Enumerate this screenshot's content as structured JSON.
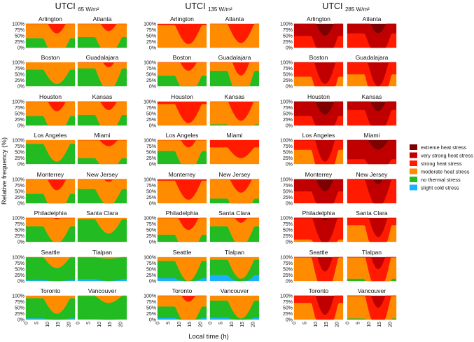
{
  "chart_data": {
    "type": "area",
    "subtype": "stacked-100-percent-small-multiples",
    "ylabel": "Relative frequency (%)",
    "xlabel": "Local time (h)",
    "x_ticks": [
      0,
      5,
      10,
      15,
      20
    ],
    "y_ticks": [
      "100%",
      "75%",
      "50%",
      "25%",
      "0%"
    ],
    "ylim": [
      0,
      100
    ],
    "xlim": [
      0,
      23
    ],
    "legend_position": "right",
    "categories": [
      {
        "key": "extreme",
        "name": "extreme heat stress",
        "color": "#7f0000"
      },
      {
        "key": "very_strong",
        "name": "very strong heat stress",
        "color": "#c00000"
      },
      {
        "key": "strong",
        "name": "strong heat stress",
        "color": "#ff1a00"
      },
      {
        "key": "moderate",
        "name": "moderate heat stress",
        "color": "#ff8c00"
      },
      {
        "key": "none",
        "name": "no thermal stress",
        "color": "#22bb22"
      },
      {
        "key": "cold",
        "name": "slight cold stress",
        "color": "#1ab2ff"
      }
    ],
    "panels": [
      {
        "title": "UTCI",
        "subtitle": "65 W/m²",
        "cities": [
          {
            "name": "Arlington",
            "a": 0.6,
            "b": 1.4,
            "c": 0.9
          },
          {
            "name": "Atlanta",
            "a": 0.55,
            "b": 1.3,
            "c": 0.85
          },
          {
            "name": "Boston",
            "a": 0.3,
            "b": 0.9,
            "c": 0.5
          },
          {
            "name": "Guadalajara",
            "a": 0.25,
            "b": 1.2,
            "c": 0.35
          },
          {
            "name": "Houston",
            "a": 0.6,
            "b": 1.4,
            "c": 0.9
          },
          {
            "name": "Kansas",
            "a": 0.55,
            "b": 1.35,
            "c": 0.85
          },
          {
            "name": "Los Angeles",
            "a": 0.15,
            "b": 0.9,
            "c": 0.4
          },
          {
            "name": "Miami",
            "a": 0.75,
            "b": 1.25,
            "c": 0.9
          },
          {
            "name": "Monterrey",
            "a": 0.6,
            "b": 1.45,
            "c": 0.9
          },
          {
            "name": "New Jersey",
            "a": 0.4,
            "b": 1.1,
            "c": 0.6
          },
          {
            "name": "Philadelphia",
            "a": 0.35,
            "b": 1.05,
            "c": 0.55
          },
          {
            "name": "Santa Clara",
            "a": 0.05,
            "b": 0.65,
            "c": 0.25
          },
          {
            "name": "Seattle",
            "a": 0.0,
            "b": 0.45,
            "c": 0.15,
            "cold": 0.04
          },
          {
            "name": "Tlalpan",
            "a": 0.0,
            "b": 0.05,
            "c": 0.0,
            "cold": 0.08
          },
          {
            "name": "Toronto",
            "a": 0.1,
            "b": 0.75,
            "c": 0.35,
            "cold": 0.06
          },
          {
            "name": "Vancouver",
            "a": 0.0,
            "b": 0.3,
            "c": 0.1,
            "cold": 0.03
          }
        ]
      },
      {
        "title": "UTCI",
        "subtitle": "135 W/m²",
        "cities": [
          {
            "name": "Arlington",
            "a": 1.05,
            "b": 1.85,
            "c": 1.3
          },
          {
            "name": "Atlanta",
            "a": 1.0,
            "b": 1.8,
            "c": 1.25
          },
          {
            "name": "Boston",
            "a": 0.55,
            "b": 1.35,
            "c": 0.8
          },
          {
            "name": "Guadalajara",
            "a": 0.35,
            "b": 1.55,
            "c": 0.5
          },
          {
            "name": "Houston",
            "a": 1.1,
            "b": 1.9,
            "c": 1.35
          },
          {
            "name": "Kansas",
            "a": 0.95,
            "b": 1.8,
            "c": 1.25
          },
          {
            "name": "Los Angeles",
            "a": 0.45,
            "b": 1.3,
            "c": 0.7
          },
          {
            "name": "Miami",
            "a": 1.3,
            "b": 1.75,
            "c": 1.45
          },
          {
            "name": "Monterrey",
            "a": 1.05,
            "b": 1.85,
            "c": 1.3
          },
          {
            "name": "New Jersey",
            "a": 0.8,
            "b": 1.55,
            "c": 1.0
          },
          {
            "name": "Philadelphia",
            "a": 0.7,
            "b": 1.5,
            "c": 0.95
          },
          {
            "name": "Santa Clara",
            "a": 0.35,
            "b": 1.2,
            "c": 0.6
          },
          {
            "name": "Seattle",
            "a": 0.15,
            "b": 1.0,
            "c": 0.4,
            "cold": 0.14
          },
          {
            "name": "Tlalpan",
            "a": 0.1,
            "b": 0.9,
            "c": 0.25,
            "cold": 0.28
          },
          {
            "name": "Toronto",
            "a": 0.45,
            "b": 1.25,
            "c": 0.7,
            "cold": 0.12
          },
          {
            "name": "Vancouver",
            "a": 0.2,
            "b": 0.95,
            "c": 0.45,
            "cold": 0.1
          }
        ]
      },
      {
        "title": "UTCI",
        "subtitle": "285 W/m²",
        "cities": [
          {
            "name": "Arlington",
            "a": 2.5,
            "b": 3.5,
            "c": 2.7
          },
          {
            "name": "Atlanta",
            "a": 2.4,
            "b": 3.4,
            "c": 2.6
          },
          {
            "name": "Boston",
            "a": 1.6,
            "b": 2.9,
            "c": 1.9
          },
          {
            "name": "Guadalajara",
            "a": 1.5,
            "b": 3.0,
            "c": 1.7
          },
          {
            "name": "Houston",
            "a": 2.6,
            "b": 3.55,
            "c": 2.8
          },
          {
            "name": "Kansas",
            "a": 2.35,
            "b": 3.4,
            "c": 2.6
          },
          {
            "name": "Los Angeles",
            "a": 1.4,
            "b": 2.9,
            "c": 1.7
          },
          {
            "name": "Miami",
            "a": 2.8,
            "b": 3.4,
            "c": 2.95
          },
          {
            "name": "Monterrey",
            "a": 2.5,
            "b": 3.5,
            "c": 2.7
          },
          {
            "name": "New Jersey",
            "a": 2.0,
            "b": 3.2,
            "c": 2.3
          },
          {
            "name": "Philadelphia",
            "a": 1.9,
            "b": 3.1,
            "c": 2.2
          },
          {
            "name": "Santa Clara",
            "a": 1.3,
            "b": 2.8,
            "c": 1.6
          },
          {
            "name": "Seattle",
            "a": 1.0,
            "b": 2.6,
            "c": 1.4
          },
          {
            "name": "Tlalpan",
            "a": 0.9,
            "b": 2.5,
            "c": 1.2
          },
          {
            "name": "Toronto",
            "a": 1.3,
            "b": 2.8,
            "c": 1.6
          },
          {
            "name": "Vancouver",
            "a": 0.95,
            "b": 2.5,
            "c": 1.3
          }
        ]
      }
    ]
  }
}
